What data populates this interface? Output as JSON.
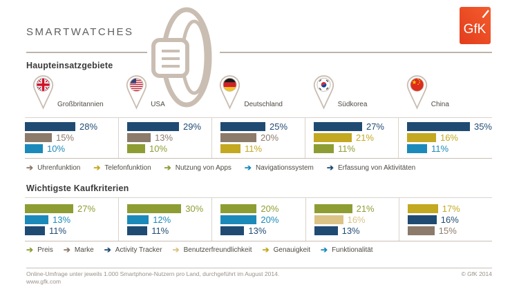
{
  "page_title": "SMARTWATCHES",
  "logo": {
    "text": "GfK",
    "color": "#EE4E23"
  },
  "colors": {
    "navy": "#1F4B73",
    "taupe": "#8C7A6B",
    "cyan": "#1B8ABA",
    "gold": "#C3A821",
    "olive": "#8E9D33",
    "tan": "#DBC386",
    "outline_taupe": "#C9BDB2",
    "accent_orange": "#EE4E23"
  },
  "countries": [
    {
      "name": "Großbritannien",
      "flag": "uk"
    },
    {
      "name": "USA",
      "flag": "us"
    },
    {
      "name": "Deutschland",
      "flag": "de"
    },
    {
      "name": "Südkorea",
      "flag": "kr"
    },
    {
      "name": "China",
      "flag": "cn"
    }
  ],
  "sections": [
    {
      "heading": "Haupteinsatzgebiete",
      "legend": [
        {
          "label": "Uhrenfunktion",
          "color": "taupe"
        },
        {
          "label": "Telefonfunktion",
          "color": "gold"
        },
        {
          "label": "Nutzung von Apps",
          "color": "olive"
        },
        {
          "label": "Navigationssystem",
          "color": "cyan"
        },
        {
          "label": "Erfassung von Aktivitäten",
          "color": "navy"
        }
      ]
    },
    {
      "heading": "Wichtigste Kaufkriterien",
      "legend": [
        {
          "label": "Preis",
          "color": "olive"
        },
        {
          "label": "Marke",
          "color": "taupe"
        },
        {
          "label": "Activity Tracker",
          "color": "navy"
        },
        {
          "label": "Benutzerfreundlichkeit",
          "color": "tan"
        },
        {
          "label": "Genauigkeit",
          "color": "gold"
        },
        {
          "label": "Funktionalität",
          "color": "cyan"
        }
      ]
    }
  ],
  "chart_data": [
    {
      "type": "bar",
      "title": "Haupteinsatzgebiete",
      "unit": "%",
      "orientation": "horizontal",
      "categories": [
        "Großbritannien",
        "USA",
        "Deutschland",
        "Südkorea",
        "China"
      ],
      "panels": [
        {
          "country": "Großbritannien",
          "bars": [
            {
              "label": "Erfassung von Aktivitäten",
              "value": 28,
              "color": "navy"
            },
            {
              "label": "Uhrenfunktion",
              "value": 15,
              "color": "taupe"
            },
            {
              "label": "Navigationssystem",
              "value": 10,
              "color": "cyan"
            }
          ]
        },
        {
          "country": "USA",
          "bars": [
            {
              "label": "Erfassung von Aktivitäten",
              "value": 29,
              "color": "navy"
            },
            {
              "label": "Uhrenfunktion",
              "value": 13,
              "color": "taupe"
            },
            {
              "label": "Nutzung von Apps",
              "value": 10,
              "color": "olive"
            }
          ]
        },
        {
          "country": "Deutschland",
          "bars": [
            {
              "label": "Erfassung von Aktivitäten",
              "value": 25,
              "color": "navy"
            },
            {
              "label": "Uhrenfunktion",
              "value": 20,
              "color": "taupe"
            },
            {
              "label": "Telefonfunktion",
              "value": 11,
              "color": "gold"
            }
          ]
        },
        {
          "country": "Südkorea",
          "bars": [
            {
              "label": "Erfassung von Aktivitäten",
              "value": 27,
              "color": "navy"
            },
            {
              "label": "Telefonfunktion",
              "value": 21,
              "color": "gold"
            },
            {
              "label": "Nutzung von Apps",
              "value": 11,
              "color": "olive"
            }
          ]
        },
        {
          "country": "China",
          "bars": [
            {
              "label": "Erfassung von Aktivitäten",
              "value": 35,
              "color": "navy"
            },
            {
              "label": "Telefonfunktion",
              "value": 16,
              "color": "gold"
            },
            {
              "label": "Navigationssystem",
              "value": 11,
              "color": "cyan"
            }
          ]
        }
      ]
    },
    {
      "type": "bar",
      "title": "Wichtigste Kaufkriterien",
      "unit": "%",
      "orientation": "horizontal",
      "categories": [
        "Großbritannien",
        "USA",
        "Deutschland",
        "Südkorea",
        "China"
      ],
      "panels": [
        {
          "country": "Großbritannien",
          "bars": [
            {
              "label": "Preis",
              "value": 27,
              "color": "olive"
            },
            {
              "label": "Funktionalität",
              "value": 13,
              "color": "cyan"
            },
            {
              "label": "Activity Tracker",
              "value": 11,
              "color": "navy"
            }
          ]
        },
        {
          "country": "USA",
          "bars": [
            {
              "label": "Preis",
              "value": 30,
              "color": "olive"
            },
            {
              "label": "Funktionalität",
              "value": 12,
              "color": "cyan"
            },
            {
              "label": "Activity Tracker",
              "value": 11,
              "color": "navy"
            }
          ]
        },
        {
          "country": "Deutschland",
          "bars": [
            {
              "label": "Preis",
              "value": 20,
              "color": "olive"
            },
            {
              "label": "Funktionalität",
              "value": 20,
              "color": "cyan"
            },
            {
              "label": "Activity Tracker",
              "value": 13,
              "color": "navy"
            }
          ]
        },
        {
          "country": "Südkorea",
          "bars": [
            {
              "label": "Preis",
              "value": 21,
              "color": "olive"
            },
            {
              "label": "Benutzerfreundlichkeit",
              "value": 16,
              "color": "tan"
            },
            {
              "label": "Activity Tracker",
              "value": 13,
              "color": "navy"
            }
          ]
        },
        {
          "country": "China",
          "bars": [
            {
              "label": "Genauigkeit",
              "value": 17,
              "color": "gold"
            },
            {
              "label": "Activity Tracker",
              "value": 16,
              "color": "navy"
            },
            {
              "label": "Marke",
              "value": 15,
              "color": "taupe"
            }
          ]
        }
      ]
    }
  ],
  "footer": {
    "line1": "Online-Umfrage unter jeweils 1.000 Smartphone-Nutzern pro Land, durchgeführt im August 2014.",
    "line2": "www.gfk.com",
    "copyright": "© GfK 2014"
  }
}
